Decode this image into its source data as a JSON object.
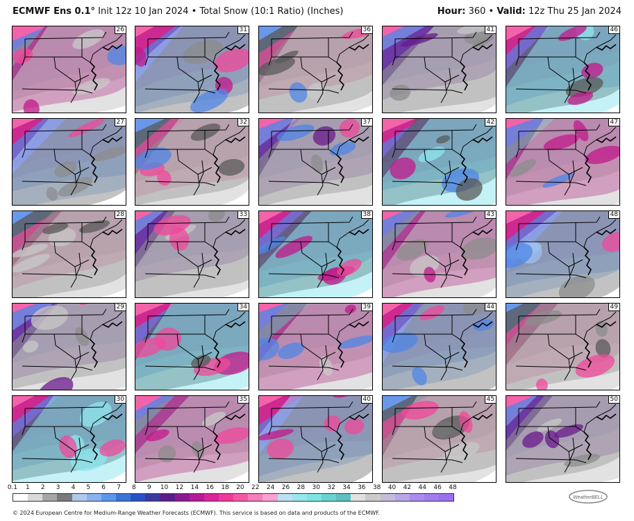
{
  "header": {
    "model": "ECMWF Ens 0.1",
    "degree": "°",
    "init": " Init 12z 10 Jan 2024",
    "bullet": " • ",
    "product": "Total Snow (10:1 Ratio) (Inches)",
    "hour_label": "Hour:",
    "hour_value": " 360",
    "valid_label": "Valid:",
    "valid_value": " 12z Thu 25 Jan 2024"
  },
  "members": [
    [
      "26",
      "31",
      "36",
      "41",
      "46"
    ],
    [
      "27",
      "32",
      "37",
      "42",
      "47"
    ],
    [
      "28",
      "33",
      "38",
      "43",
      "48"
    ],
    [
      "29",
      "34",
      "39",
      "44",
      "49"
    ],
    [
      "30",
      "35",
      "40",
      "45",
      "50"
    ]
  ],
  "legend": {
    "ticks": [
      "0.1",
      "1",
      "2",
      "3",
      "4",
      "5",
      "6",
      "7",
      "8",
      "9",
      "10",
      "12",
      "14",
      "16",
      "18",
      "20",
      "22",
      "24",
      "26",
      "28",
      "30",
      "32",
      "34",
      "36",
      "38",
      "40",
      "42",
      "44",
      "46",
      "48"
    ],
    "colors": [
      "#ffffff",
      "#d9d9d9",
      "#a6a6a6",
      "#7a7a7a",
      "#aec9ec",
      "#8ab2ee",
      "#5e97ea",
      "#3a74d8",
      "#2a52c8",
      "#3a3aa0",
      "#5a1e8a",
      "#8a1a8e",
      "#b41c98",
      "#d8259c",
      "#ee3a9c",
      "#f45aa4",
      "#f47ebe",
      "#f8a2d2",
      "#bfe0f0",
      "#9ae6ee",
      "#7ce4e4",
      "#6ad2d2",
      "#5ec0c0",
      "#e2e0e0",
      "#cfcaca",
      "#c4bcdc",
      "#b7a6e8",
      "#aa8cee",
      "#a07ef0",
      "#9a70f0"
    ]
  },
  "footer": "© 2024 European Centre for Medium-Range Weather Forecasts (ECMWF). This service is based on data and products of the ECMWF.",
  "logo_text": "WeatherBELL",
  "colors": {
    "pink": "#f0489a",
    "magenta": "#c2188a",
    "purple": "#6a1a8e",
    "blue": "#4f86e6",
    "light_blue": "#9cc0f0",
    "cyan": "#8fe6ee",
    "gray": "#8c8c8c",
    "dark_gray": "#5a5a5a",
    "light_gray": "#c8c8c8"
  }
}
